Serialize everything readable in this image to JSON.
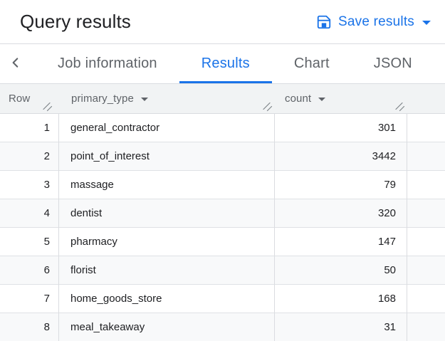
{
  "header": {
    "title": "Query results",
    "save_button": {
      "label": "Save results"
    }
  },
  "tabs": {
    "items": [
      {
        "label": "Job information",
        "active": false
      },
      {
        "label": "Results",
        "active": true
      },
      {
        "label": "Chart",
        "active": false
      },
      {
        "label": "JSON",
        "active": false
      }
    ]
  },
  "table": {
    "columns": [
      {
        "label": "Row",
        "sortable": false
      },
      {
        "label": "primary_type",
        "sortable": true
      },
      {
        "label": "count",
        "sortable": true
      }
    ],
    "rows": [
      {
        "row": 1,
        "primary_type": "general_contractor",
        "count": 301
      },
      {
        "row": 2,
        "primary_type": "point_of_interest",
        "count": 3442
      },
      {
        "row": 3,
        "primary_type": "massage",
        "count": 79
      },
      {
        "row": 4,
        "primary_type": "dentist",
        "count": 320
      },
      {
        "row": 5,
        "primary_type": "pharmacy",
        "count": 147
      },
      {
        "row": 6,
        "primary_type": "florist",
        "count": 50
      },
      {
        "row": 7,
        "primary_type": "home_goods_store",
        "count": 168
      },
      {
        "row": 8,
        "primary_type": "meal_takeaway",
        "count": 31
      }
    ]
  },
  "colors": {
    "accent_blue": "#1a73e8",
    "header_bg": "#f1f3f4",
    "stripe_bg": "#f8f9fa",
    "border": "#dadce0",
    "text_primary": "#202124",
    "text_secondary": "#5f6368"
  },
  "icons": {
    "save": "save-icon",
    "caret_down": "caret-down-icon",
    "chevron_left": "chevron-left-icon",
    "resize": "column-resize-handle-icon"
  }
}
